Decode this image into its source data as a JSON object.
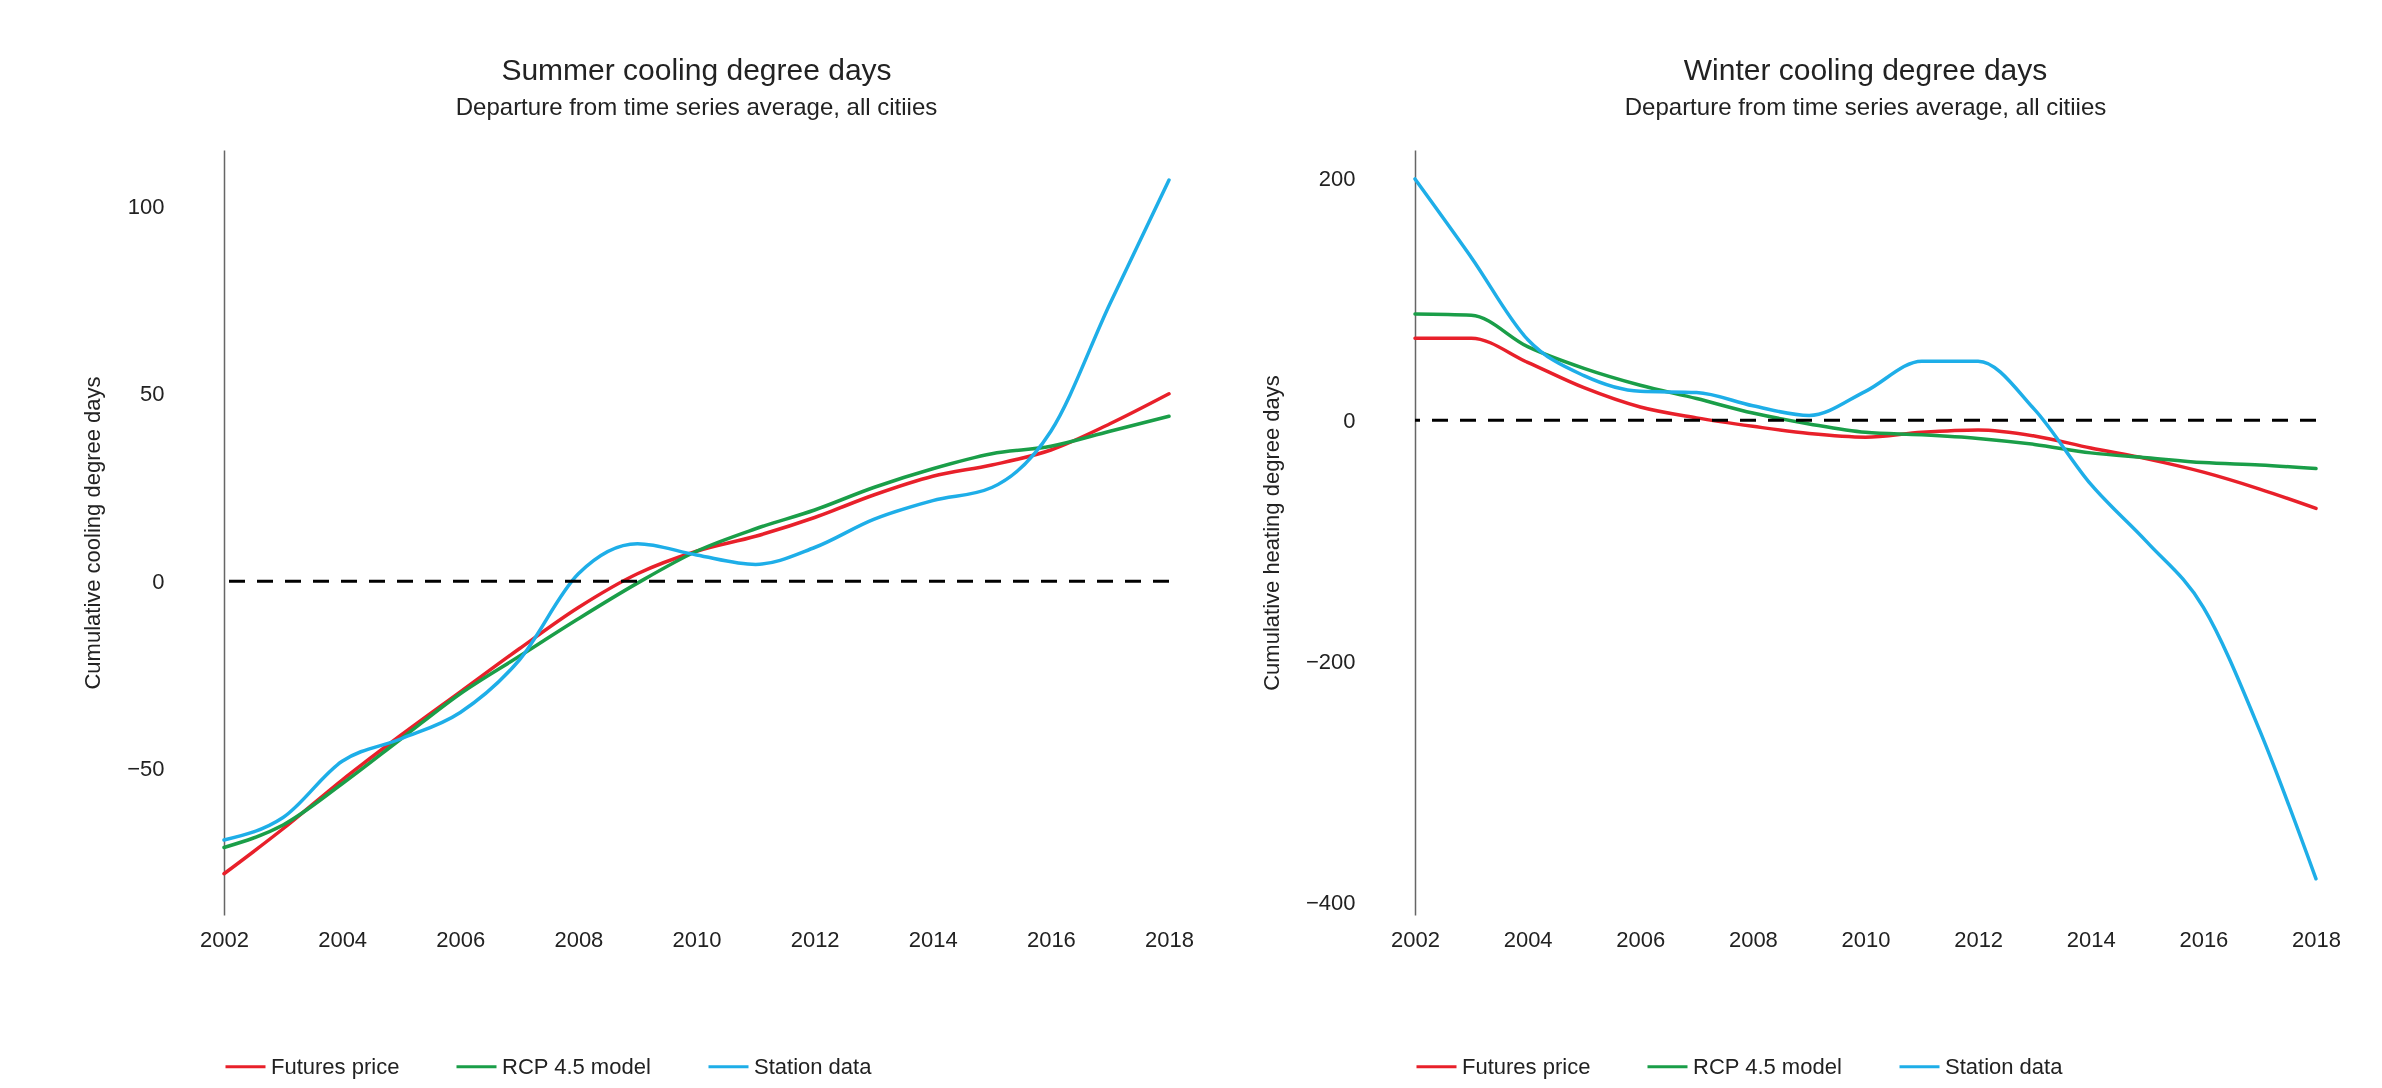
{
  "chart_data": [
    {
      "type": "line",
      "title": "Summer cooling degree days",
      "subtitle": "Departure from time series average, all citiies",
      "ylabel": "Cumulative cooling degree days",
      "x": [
        2002,
        2003,
        2004,
        2005,
        2006,
        2007,
        2008,
        2009,
        2010,
        2011,
        2012,
        2013,
        2014,
        2015,
        2016,
        2017,
        2018
      ],
      "series": [
        {
          "name": "Futures price",
          "color": "#e8202a",
          "values": [
            -78,
            -66,
            -53,
            -41,
            -29.5,
            -18,
            -7,
            2,
            8,
            12,
            17,
            23,
            28,
            31,
            35,
            42,
            50
          ]
        },
        {
          "name": "RCP 4.5 model",
          "color": "#1a9e48",
          "values": [
            -71,
            -65,
            -54,
            -42,
            -30,
            -20,
            -10,
            -0.5,
            8,
            14,
            19,
            25,
            30,
            34,
            36,
            40,
            44
          ]
        },
        {
          "name": "Station data",
          "color": "#1eaee8",
          "values": [
            -69,
            -63,
            -48,
            -42,
            -35,
            -21,
            2,
            10,
            7,
            4.5,
            9,
            16.5,
            21.5,
            25,
            40,
            74,
            107
          ]
        }
      ],
      "xlim": [
        2002,
        2018
      ],
      "ylim": [
        -89,
        115
      ],
      "xticks": [
        2002,
        2004,
        2006,
        2008,
        2010,
        2012,
        2014,
        2016,
        2018
      ],
      "yticks": [
        -50,
        0,
        50,
        100
      ],
      "ref_lines": [
        {
          "axis": "y",
          "value": 0,
          "color": "#000000",
          "line_style": "dashed"
        }
      ],
      "legend": "bottom"
    },
    {
      "type": "line",
      "title": "Winter cooling degree days",
      "subtitle": "Departure from time series average, all citiies",
      "ylabel": "Cumulative heating degree days",
      "x": [
        2002,
        2003,
        2004,
        2005,
        2006,
        2007,
        2008,
        2009,
        2010,
        2011,
        2012,
        2013,
        2014,
        2015,
        2016,
        2017,
        2018
      ],
      "series": [
        {
          "name": "Futures price",
          "color": "#e8202a",
          "values": [
            68,
            68,
            48,
            27,
            11,
            2,
            -5,
            -11,
            -14,
            -10,
            -8,
            -13,
            -23,
            -32,
            -43,
            -57,
            -73
          ]
        },
        {
          "name": "RCP 4.5 model",
          "color": "#1a9e48",
          "values": [
            88,
            87,
            61,
            43,
            29,
            18,
            6,
            -3,
            -10,
            -12,
            -15,
            -20,
            -27,
            -31,
            -35,
            -37,
            -40
          ]
        },
        {
          "name": "Station data",
          "color": "#1eaee8",
          "values": [
            200,
            135,
            67,
            37,
            24,
            23,
            12,
            4,
            24,
            49,
            49,
            9,
            -53,
            -101,
            -155,
            -257,
            -380
          ]
        }
      ],
      "xlim": [
        2002,
        2018
      ],
      "ylim": [
        -410,
        224
      ],
      "xticks": [
        2002,
        2004,
        2006,
        2008,
        2010,
        2012,
        2014,
        2016,
        2018
      ],
      "yticks": [
        -400,
        -200,
        0,
        200
      ],
      "ref_lines": [
        {
          "axis": "y",
          "value": 0,
          "color": "#000000",
          "line_style": "dashed"
        }
      ],
      "legend": "bottom"
    }
  ]
}
